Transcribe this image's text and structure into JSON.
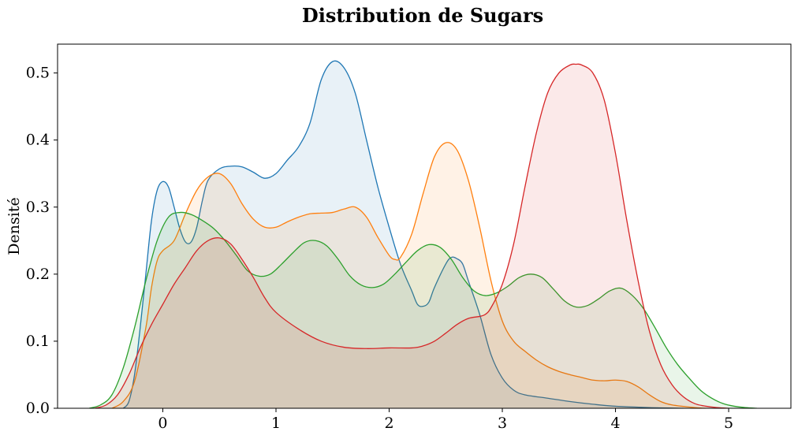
{
  "chart_data": {
    "type": "area",
    "title": "Distribution de Sugars",
    "xlabel": "",
    "ylabel": "Densité",
    "xlim": [
      -0.93,
      5.55
    ],
    "ylim": [
      0,
      0.543
    ],
    "x_ticks": [
      0,
      1,
      2,
      3,
      4,
      5
    ],
    "y_ticks": [
      0.0,
      0.1,
      0.2,
      0.3,
      0.4,
      0.5
    ],
    "y_tick_labels": [
      "0.0",
      "0.1",
      "0.2",
      "0.3",
      "0.4",
      "0.5"
    ],
    "grid": false,
    "legend": "none",
    "fill_opacity": 0.1,
    "series": [
      {
        "color": "#1f77b4",
        "points": [
          [
            -0.35,
            0
          ],
          [
            -0.3,
            0.01
          ],
          [
            -0.25,
            0.05
          ],
          [
            -0.2,
            0.12
          ],
          [
            -0.15,
            0.2
          ],
          [
            -0.1,
            0.28
          ],
          [
            -0.05,
            0.325
          ],
          [
            0.0,
            0.338
          ],
          [
            0.05,
            0.33
          ],
          [
            0.1,
            0.3
          ],
          [
            0.15,
            0.268
          ],
          [
            0.2,
            0.248
          ],
          [
            0.25,
            0.248
          ],
          [
            0.3,
            0.27
          ],
          [
            0.35,
            0.31
          ],
          [
            0.4,
            0.34
          ],
          [
            0.5,
            0.357
          ],
          [
            0.6,
            0.361
          ],
          [
            0.7,
            0.36
          ],
          [
            0.8,
            0.352
          ],
          [
            0.9,
            0.343
          ],
          [
            1.0,
            0.35
          ],
          [
            1.1,
            0.37
          ],
          [
            1.2,
            0.39
          ],
          [
            1.3,
            0.425
          ],
          [
            1.4,
            0.49
          ],
          [
            1.5,
            0.517
          ],
          [
            1.6,
            0.508
          ],
          [
            1.7,
            0.47
          ],
          [
            1.8,
            0.4
          ],
          [
            1.9,
            0.33
          ],
          [
            2.0,
            0.27
          ],
          [
            2.1,
            0.215
          ],
          [
            2.2,
            0.175
          ],
          [
            2.25,
            0.155
          ],
          [
            2.3,
            0.152
          ],
          [
            2.35,
            0.158
          ],
          [
            2.4,
            0.18
          ],
          [
            2.5,
            0.215
          ],
          [
            2.55,
            0.225
          ],
          [
            2.6,
            0.223
          ],
          [
            2.65,
            0.215
          ],
          [
            2.7,
            0.19
          ],
          [
            2.8,
            0.14
          ],
          [
            2.9,
            0.08
          ],
          [
            3.0,
            0.045
          ],
          [
            3.1,
            0.027
          ],
          [
            3.2,
            0.02
          ],
          [
            3.4,
            0.015
          ],
          [
            3.6,
            0.01
          ],
          [
            3.8,
            0.006
          ],
          [
            4.0,
            0.003
          ],
          [
            4.3,
            0.001
          ],
          [
            4.6,
            0
          ]
        ]
      },
      {
        "color": "#ff7f0e",
        "points": [
          [
            -0.45,
            0
          ],
          [
            -0.35,
            0.01
          ],
          [
            -0.25,
            0.04
          ],
          [
            -0.15,
            0.12
          ],
          [
            -0.1,
            0.18
          ],
          [
            -0.05,
            0.22
          ],
          [
            0.0,
            0.235
          ],
          [
            0.1,
            0.25
          ],
          [
            0.2,
            0.29
          ],
          [
            0.3,
            0.325
          ],
          [
            0.4,
            0.345
          ],
          [
            0.5,
            0.35
          ],
          [
            0.6,
            0.335
          ],
          [
            0.7,
            0.305
          ],
          [
            0.8,
            0.282
          ],
          [
            0.9,
            0.27
          ],
          [
            1.0,
            0.27
          ],
          [
            1.1,
            0.278
          ],
          [
            1.2,
            0.285
          ],
          [
            1.3,
            0.29
          ],
          [
            1.4,
            0.291
          ],
          [
            1.5,
            0.292
          ],
          [
            1.6,
            0.297
          ],
          [
            1.7,
            0.3
          ],
          [
            1.8,
            0.285
          ],
          [
            1.9,
            0.255
          ],
          [
            2.0,
            0.228
          ],
          [
            2.05,
            0.222
          ],
          [
            2.1,
            0.225
          ],
          [
            2.2,
            0.26
          ],
          [
            2.3,
            0.32
          ],
          [
            2.4,
            0.375
          ],
          [
            2.5,
            0.396
          ],
          [
            2.6,
            0.385
          ],
          [
            2.7,
            0.34
          ],
          [
            2.8,
            0.27
          ],
          [
            2.9,
            0.19
          ],
          [
            3.0,
            0.13
          ],
          [
            3.1,
            0.1
          ],
          [
            3.2,
            0.085
          ],
          [
            3.3,
            0.072
          ],
          [
            3.4,
            0.062
          ],
          [
            3.5,
            0.055
          ],
          [
            3.6,
            0.05
          ],
          [
            3.7,
            0.046
          ],
          [
            3.8,
            0.042
          ],
          [
            3.9,
            0.041
          ],
          [
            4.0,
            0.042
          ],
          [
            4.1,
            0.04
          ],
          [
            4.2,
            0.032
          ],
          [
            4.3,
            0.02
          ],
          [
            4.4,
            0.01
          ],
          [
            4.5,
            0.005
          ],
          [
            4.7,
            0.001
          ],
          [
            4.8,
            0
          ]
        ]
      },
      {
        "color": "#2ca02c",
        "points": [
          [
            -0.65,
            0
          ],
          [
            -0.55,
            0.005
          ],
          [
            -0.45,
            0.02
          ],
          [
            -0.35,
            0.06
          ],
          [
            -0.25,
            0.12
          ],
          [
            -0.15,
            0.19
          ],
          [
            -0.05,
            0.25
          ],
          [
            0.05,
            0.285
          ],
          [
            0.15,
            0.292
          ],
          [
            0.25,
            0.289
          ],
          [
            0.35,
            0.28
          ],
          [
            0.45,
            0.268
          ],
          [
            0.55,
            0.25
          ],
          [
            0.65,
            0.228
          ],
          [
            0.75,
            0.205
          ],
          [
            0.85,
            0.197
          ],
          [
            0.95,
            0.2
          ],
          [
            1.05,
            0.215
          ],
          [
            1.15,
            0.232
          ],
          [
            1.25,
            0.247
          ],
          [
            1.35,
            0.25
          ],
          [
            1.45,
            0.242
          ],
          [
            1.55,
            0.222
          ],
          [
            1.65,
            0.198
          ],
          [
            1.75,
            0.184
          ],
          [
            1.85,
            0.18
          ],
          [
            1.95,
            0.185
          ],
          [
            2.05,
            0.2
          ],
          [
            2.15,
            0.218
          ],
          [
            2.25,
            0.235
          ],
          [
            2.35,
            0.244
          ],
          [
            2.45,
            0.24
          ],
          [
            2.55,
            0.222
          ],
          [
            2.65,
            0.195
          ],
          [
            2.75,
            0.175
          ],
          [
            2.85,
            0.168
          ],
          [
            2.95,
            0.172
          ],
          [
            3.05,
            0.182
          ],
          [
            3.15,
            0.195
          ],
          [
            3.25,
            0.2
          ],
          [
            3.35,
            0.195
          ],
          [
            3.45,
            0.178
          ],
          [
            3.55,
            0.16
          ],
          [
            3.65,
            0.151
          ],
          [
            3.75,
            0.153
          ],
          [
            3.85,
            0.163
          ],
          [
            3.95,
            0.175
          ],
          [
            4.05,
            0.179
          ],
          [
            4.15,
            0.168
          ],
          [
            4.25,
            0.148
          ],
          [
            4.35,
            0.12
          ],
          [
            4.45,
            0.09
          ],
          [
            4.55,
            0.065
          ],
          [
            4.65,
            0.045
          ],
          [
            4.75,
            0.027
          ],
          [
            4.85,
            0.015
          ],
          [
            4.95,
            0.007
          ],
          [
            5.05,
            0.003
          ],
          [
            5.15,
            0.001
          ],
          [
            5.25,
            0
          ]
        ]
      },
      {
        "color": "#d62728",
        "points": [
          [
            -0.6,
            0
          ],
          [
            -0.5,
            0.005
          ],
          [
            -0.4,
            0.02
          ],
          [
            -0.3,
            0.05
          ],
          [
            -0.2,
            0.09
          ],
          [
            -0.1,
            0.125
          ],
          [
            0.0,
            0.155
          ],
          [
            0.1,
            0.185
          ],
          [
            0.2,
            0.21
          ],
          [
            0.3,
            0.235
          ],
          [
            0.4,
            0.25
          ],
          [
            0.5,
            0.254
          ],
          [
            0.6,
            0.245
          ],
          [
            0.7,
            0.222
          ],
          [
            0.8,
            0.195
          ],
          [
            0.9,
            0.165
          ],
          [
            1.0,
            0.143
          ],
          [
            1.2,
            0.118
          ],
          [
            1.4,
            0.1
          ],
          [
            1.6,
            0.091
          ],
          [
            1.8,
            0.089
          ],
          [
            2.0,
            0.09
          ],
          [
            2.2,
            0.09
          ],
          [
            2.3,
            0.093
          ],
          [
            2.4,
            0.1
          ],
          [
            2.5,
            0.112
          ],
          [
            2.6,
            0.125
          ],
          [
            2.7,
            0.134
          ],
          [
            2.8,
            0.137
          ],
          [
            2.85,
            0.14
          ],
          [
            2.9,
            0.15
          ],
          [
            3.0,
            0.185
          ],
          [
            3.1,
            0.245
          ],
          [
            3.2,
            0.33
          ],
          [
            3.3,
            0.41
          ],
          [
            3.4,
            0.47
          ],
          [
            3.5,
            0.5
          ],
          [
            3.6,
            0.512
          ],
          [
            3.65,
            0.513
          ],
          [
            3.7,
            0.512
          ],
          [
            3.8,
            0.5
          ],
          [
            3.9,
            0.46
          ],
          [
            4.0,
            0.38
          ],
          [
            4.1,
            0.28
          ],
          [
            4.2,
            0.19
          ],
          [
            4.3,
            0.115
          ],
          [
            4.4,
            0.065
          ],
          [
            4.5,
            0.035
          ],
          [
            4.6,
            0.017
          ],
          [
            4.7,
            0.007
          ],
          [
            4.8,
            0.003
          ],
          [
            4.9,
            0.001
          ],
          [
            5.0,
            0
          ]
        ]
      }
    ]
  }
}
